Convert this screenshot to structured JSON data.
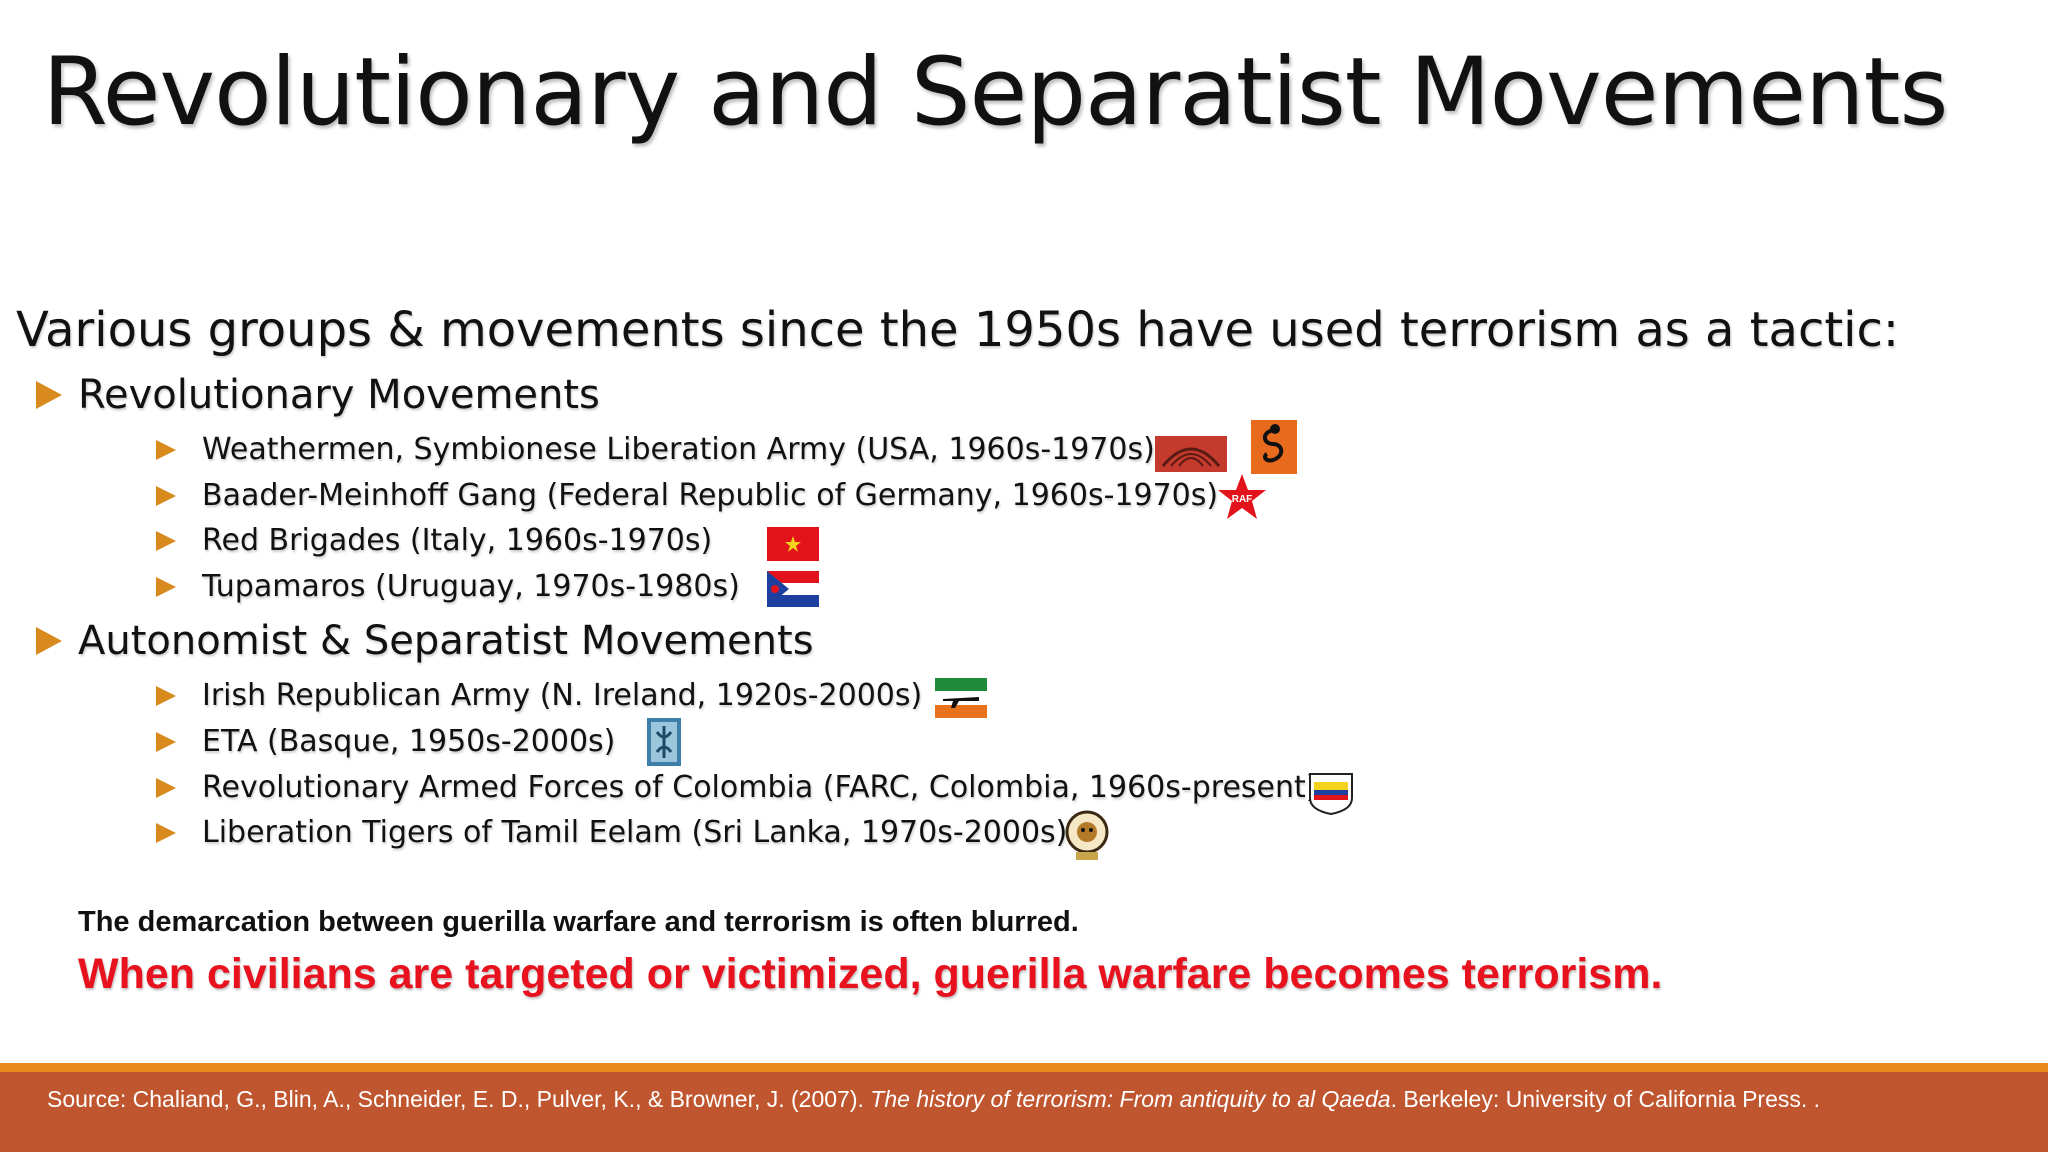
{
  "slide": {
    "title": "Revolutionary and Separatist Movements",
    "intro": "Various groups & movements since the 1950s have used terrorism as a tactic:"
  },
  "sections": [
    {
      "heading": "Revolutionary Movements",
      "items": [
        "Weathermen, Symbionese Liberation Army (USA, 1960s-1970s)",
        "Baader-Meinhoff Gang (Federal Republic of Germany, 1960s-1970s)",
        "Red Brigades (Italy, 1960s-1970s)",
        "Tupamaros (Uruguay, 1970s-1980s)"
      ]
    },
    {
      "heading": "Autonomist & Separatist Movements",
      "items": [
        "Irish Republican Army (N. Ireland, 1920s-2000s)",
        "ETA (Basque, 1950s-2000s)",
        "Revolutionary Armed Forces of Colombia (FARC, Colombia, 1960s-present)",
        "Liberation Tigers of Tamil Eelam (Sri Lanka, 1970s-2000s)"
      ]
    }
  ],
  "notes": {
    "line1": "The demarcation between guerilla warfare and terrorism is often blurred.",
    "line2": "When civilians are targeted or victimized, guerilla warfare becomes terrorism."
  },
  "footer": {
    "source_prefix": "Source: Chaliand, G., Blin, A., Schneider, E. D., Pulver, K., & Browner, J. (2007). ",
    "source_title": "The history of terrorism: From antiquity to al Qaeda",
    "source_suffix": ". Berkeley: University of California Press. ."
  },
  "logos": {
    "raf_text": "RAF"
  },
  "colors": {
    "bullet": "#d98a1e",
    "emphasis": "#e8111e",
    "footer_band": "#c0562f",
    "footer_stripe": "#ea8a1c"
  }
}
